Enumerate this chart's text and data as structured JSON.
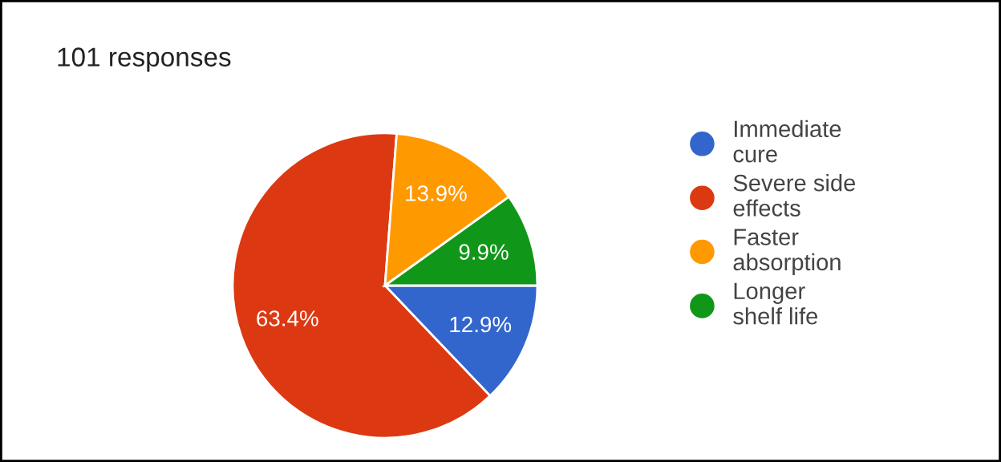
{
  "chart_data": {
    "type": "pie",
    "title": "101 responses",
    "categories": [
      "Immediate cure",
      "Severe side effects",
      "Faster absorption",
      "Longer shelf life"
    ],
    "values": [
      12.9,
      63.4,
      13.9,
      9.9
    ],
    "value_labels": [
      "12.9%",
      "63.4%",
      "13.9%",
      "9.9%"
    ],
    "colors": [
      "#3366cc",
      "#dc3912",
      "#ff9900",
      "#109618"
    ],
    "legend": "right"
  }
}
